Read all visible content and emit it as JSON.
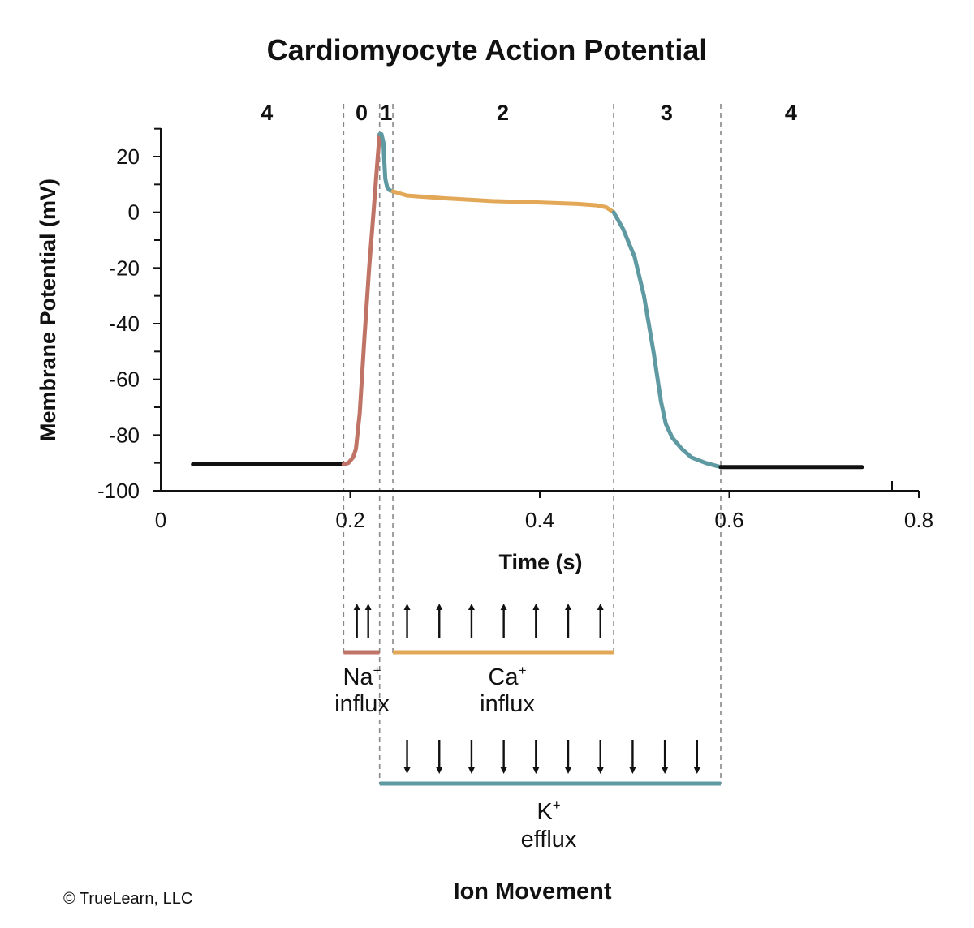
{
  "chart_data": {
    "type": "line",
    "title": "Cardiomyocyte Action Potential",
    "xlabel": "Time (s)",
    "ylabel": "Membrane Potential (mV)",
    "xlim": [
      0,
      0.8
    ],
    "ylim": [
      -100,
      30
    ],
    "x_ticks": [
      "0",
      "0.2",
      "0.4",
      "0.6",
      "0.8"
    ],
    "x_tick_values": [
      0,
      0.2,
      0.4,
      0.6,
      0.8
    ],
    "y_ticks": [
      "20",
      "0",
      "-20",
      "-40",
      "-60",
      "-80",
      "-100"
    ],
    "y_tick_values": [
      20,
      0,
      -20,
      -40,
      -60,
      -80,
      -100
    ],
    "y_minor_ticks": [
      30,
      10,
      -10,
      -30,
      -50,
      -70,
      -90
    ],
    "grid": false,
    "phase_boundaries": [
      0.193,
      0.231,
      0.245,
      0.478,
      0.591
    ],
    "phase_labels": [
      {
        "label": "4",
        "x": 0.112
      },
      {
        "label": "0",
        "x": 0.212
      },
      {
        "label": "1",
        "x": 0.238
      },
      {
        "label": "2",
        "x": 0.361
      },
      {
        "label": "3",
        "x": 0.534
      },
      {
        "label": "4",
        "x": 0.665
      }
    ],
    "segments": [
      {
        "phase": "4",
        "color": "#111111",
        "points": [
          [
            0.034,
            -90.5
          ],
          [
            0.193,
            -90.5
          ]
        ]
      },
      {
        "phase": "0",
        "color": "#c07466",
        "points": [
          [
            0.193,
            -90.5
          ],
          [
            0.198,
            -90.0
          ],
          [
            0.203,
            -88.0
          ],
          [
            0.206,
            -85.0
          ],
          [
            0.21,
            -72.0
          ],
          [
            0.215,
            -45.0
          ],
          [
            0.22,
            -20.0
          ],
          [
            0.225,
            2.0
          ],
          [
            0.229,
            20.0
          ],
          [
            0.231,
            28.0
          ]
        ]
      },
      {
        "phase": "1",
        "color": "#5f9aa3",
        "points": [
          [
            0.231,
            28.0
          ],
          [
            0.233,
            28.0
          ],
          [
            0.235,
            25.0
          ],
          [
            0.236,
            18.0
          ],
          [
            0.237,
            12.0
          ],
          [
            0.239,
            9.0
          ],
          [
            0.241,
            8.0
          ],
          [
            0.245,
            7.5
          ]
        ]
      },
      {
        "phase": "2",
        "color": "#e2a857",
        "points": [
          [
            0.245,
            7.5
          ],
          [
            0.26,
            6.0
          ],
          [
            0.3,
            5.0
          ],
          [
            0.35,
            4.0
          ],
          [
            0.4,
            3.5
          ],
          [
            0.44,
            3.0
          ],
          [
            0.46,
            2.5
          ],
          [
            0.47,
            1.8
          ],
          [
            0.478,
            0.0
          ]
        ]
      },
      {
        "phase": "3",
        "color": "#5f9aa3",
        "points": [
          [
            0.478,
            0.0
          ],
          [
            0.488,
            -6.0
          ],
          [
            0.5,
            -16.0
          ],
          [
            0.51,
            -30.0
          ],
          [
            0.52,
            -50.0
          ],
          [
            0.528,
            -68.0
          ],
          [
            0.533,
            -76.0
          ],
          [
            0.54,
            -81.0
          ],
          [
            0.55,
            -85.0
          ],
          [
            0.56,
            -88.0
          ],
          [
            0.575,
            -90.0
          ],
          [
            0.591,
            -91.5
          ]
        ]
      },
      {
        "phase": "4",
        "color": "#111111",
        "points": [
          [
            0.591,
            -91.5
          ],
          [
            0.74,
            -91.5
          ]
        ]
      }
    ]
  },
  "ion_movement": {
    "title": "Ion Movement",
    "sodium": {
      "ion": "Na",
      "charge": "+",
      "label": "influx",
      "color": "#c07466",
      "start": 0.193,
      "end": 0.231,
      "direction": "up",
      "arrows": [
        0.207,
        0.219
      ]
    },
    "calcium": {
      "ion": "Ca",
      "charge": "+",
      "label": "influx",
      "color": "#e2a857",
      "start": 0.245,
      "end": 0.478,
      "direction": "up",
      "arrows": [
        0.26,
        0.294,
        0.328,
        0.362,
        0.396,
        0.43,
        0.464
      ]
    },
    "potassium": {
      "ion": "K",
      "charge": "+",
      "label": "efflux",
      "color": "#5f9aa3",
      "start": 0.231,
      "end": 0.591,
      "direction": "down",
      "arrows": [
        0.26,
        0.294,
        0.328,
        0.362,
        0.396,
        0.43,
        0.464,
        0.498,
        0.532,
        0.566
      ]
    }
  },
  "copyright": "© TrueLearn, LLC"
}
